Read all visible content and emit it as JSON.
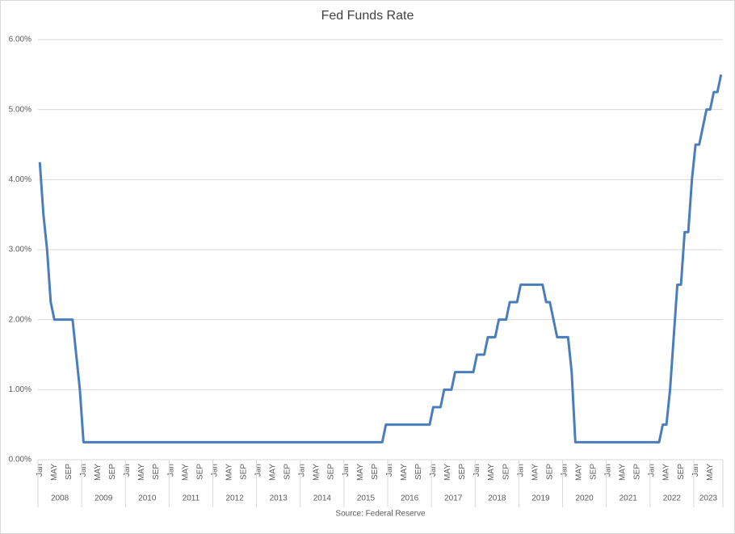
{
  "chart_data": {
    "type": "line",
    "title": "Fed Funds Rate",
    "source": "Source: Federal Reserve",
    "categories": [
      "Jan",
      null,
      null,
      null,
      "MAY",
      null,
      null,
      null,
      "SEP",
      null,
      null,
      null,
      "Jan",
      null,
      null,
      null,
      "MAY",
      null,
      null,
      null,
      "SEP",
      null,
      null,
      null,
      "Jan",
      null,
      null,
      null,
      "MAY",
      null,
      null,
      null,
      "SEP",
      null,
      null,
      null,
      "Jan",
      null,
      null,
      null,
      "MAY",
      null,
      null,
      null,
      "SEP",
      null,
      null,
      null,
      "Jan",
      null,
      null,
      null,
      "MAY",
      null,
      null,
      null,
      "SEP",
      null,
      null,
      null,
      "Jan",
      null,
      null,
      null,
      "MAY",
      null,
      null,
      null,
      "SEP",
      null,
      null,
      null,
      "Jan",
      null,
      null,
      null,
      "MAY",
      null,
      null,
      null,
      "SEP",
      null,
      null,
      null,
      "Jan",
      null,
      null,
      null,
      "MAY",
      null,
      null,
      null,
      "SEP",
      null,
      null,
      null,
      "Jan",
      null,
      null,
      null,
      "MAY",
      null,
      null,
      null,
      "SEP",
      null,
      null,
      null,
      "Jan",
      null,
      null,
      null,
      "MAY",
      null,
      null,
      null,
      "SEP",
      null,
      null,
      null,
      "Jan",
      null,
      null,
      null,
      "MAY",
      null,
      null,
      null,
      "SEP",
      null,
      null,
      null,
      "Jan",
      null,
      null,
      null,
      "MAY",
      null,
      null,
      null,
      "SEP",
      null,
      null,
      null,
      "Jan",
      null,
      null,
      null,
      "MAY",
      null,
      null,
      null,
      "SEP",
      null,
      null,
      null,
      "Jan",
      null,
      null,
      null,
      "MAY",
      null,
      null,
      null,
      "SEP",
      null,
      null,
      null,
      "Jan",
      null,
      null,
      null,
      "MAY",
      null,
      null,
      null,
      "SEP",
      null,
      null,
      null,
      "Jan",
      null,
      null,
      null,
      "MAY",
      null,
      null,
      null
    ],
    "years": [
      "2008",
      "2009",
      "2010",
      "2011",
      "2012",
      "2013",
      "2014",
      "2015",
      "2016",
      "2017",
      "2018",
      "2019",
      "2020",
      "2021",
      "2022",
      "2023"
    ],
    "series": [
      {
        "color": "#4a7ebb",
        "values": [
          4.25,
          3.5,
          3.0,
          2.25,
          2.0,
          2.0,
          2.0,
          2.0,
          2.0,
          2.0,
          1.5,
          1.0,
          0.25,
          0.25,
          0.25,
          0.25,
          0.25,
          0.25,
          0.25,
          0.25,
          0.25,
          0.25,
          0.25,
          0.25,
          0.25,
          0.25,
          0.25,
          0.25,
          0.25,
          0.25,
          0.25,
          0.25,
          0.25,
          0.25,
          0.25,
          0.25,
          0.25,
          0.25,
          0.25,
          0.25,
          0.25,
          0.25,
          0.25,
          0.25,
          0.25,
          0.25,
          0.25,
          0.25,
          0.25,
          0.25,
          0.25,
          0.25,
          0.25,
          0.25,
          0.25,
          0.25,
          0.25,
          0.25,
          0.25,
          0.25,
          0.25,
          0.25,
          0.25,
          0.25,
          0.25,
          0.25,
          0.25,
          0.25,
          0.25,
          0.25,
          0.25,
          0.25,
          0.25,
          0.25,
          0.25,
          0.25,
          0.25,
          0.25,
          0.25,
          0.25,
          0.25,
          0.25,
          0.25,
          0.25,
          0.25,
          0.25,
          0.25,
          0.25,
          0.25,
          0.25,
          0.25,
          0.25,
          0.25,
          0.25,
          0.25,
          0.5,
          0.5,
          0.5,
          0.5,
          0.5,
          0.5,
          0.5,
          0.5,
          0.5,
          0.5,
          0.5,
          0.5,
          0.5,
          0.75,
          0.75,
          0.75,
          1.0,
          1.0,
          1.0,
          1.25,
          1.25,
          1.25,
          1.25,
          1.25,
          1.25,
          1.5,
          1.5,
          1.5,
          1.75,
          1.75,
          1.75,
          2.0,
          2.0,
          2.0,
          2.25,
          2.25,
          2.25,
          2.5,
          2.5,
          2.5,
          2.5,
          2.5,
          2.5,
          2.5,
          2.25,
          2.25,
          2.0,
          1.75,
          1.75,
          1.75,
          1.75,
          1.25,
          0.25,
          0.25,
          0.25,
          0.25,
          0.25,
          0.25,
          0.25,
          0.25,
          0.25,
          0.25,
          0.25,
          0.25,
          0.25,
          0.25,
          0.25,
          0.25,
          0.25,
          0.25,
          0.25,
          0.25,
          0.25,
          0.25,
          0.25,
          0.25,
          0.5,
          0.5,
          1.0,
          1.75,
          2.5,
          2.5,
          3.25,
          3.25,
          4.0,
          4.5,
          4.5,
          4.75,
          5.0,
          5.0,
          5.25,
          5.25,
          5.5
        ]
      }
    ],
    "ylim": [
      0,
      6
    ],
    "yticks": [
      {
        "value": 0,
        "label": "0.00%"
      },
      {
        "value": 1,
        "label": "1.00%"
      },
      {
        "value": 2,
        "label": "2.00%"
      },
      {
        "value": 3,
        "label": "3.00%"
      },
      {
        "value": 4,
        "label": "4.00%"
      },
      {
        "value": 5,
        "label": "5.00%"
      },
      {
        "value": 6,
        "label": "6.00%"
      }
    ],
    "grid": true
  }
}
